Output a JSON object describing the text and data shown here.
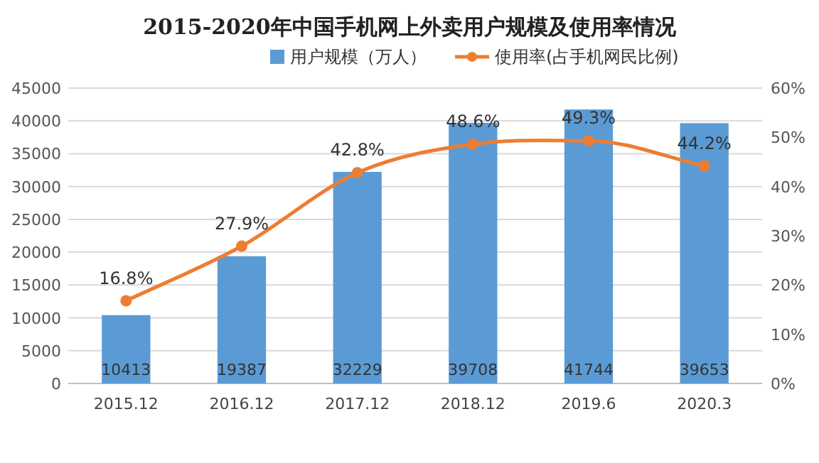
{
  "chart_data": {
    "type": "bar",
    "title": "2015-2020年中国手机网上外卖用户规模及使用率情况",
    "categories": [
      "2015.12",
      "2016.12",
      "2017.12",
      "2018.12",
      "2019.6",
      "2020.3"
    ],
    "series": [
      {
        "name": "用户规模（万人）",
        "color": "#5b9bd5",
        "values": [
          10413,
          19387,
          32229,
          39708,
          41744,
          39653
        ]
      },
      {
        "name": "使用率(占手机网民比例)",
        "type": "line",
        "axis": "y2",
        "color": "#ed7d31",
        "marker": "circle",
        "values": [
          16.8,
          27.9,
          42.8,
          48.6,
          49.3,
          44.2
        ],
        "value_labels": [
          "16.8%",
          "27.9%",
          "42.8%",
          "48.6%",
          "49.3%",
          "44.2%"
        ]
      }
    ],
    "ylim": [
      0,
      45000
    ],
    "yticks": [
      0,
      5000,
      10000,
      15000,
      20000,
      25000,
      30000,
      35000,
      40000,
      45000
    ],
    "y2lim": [
      0,
      60
    ],
    "y2ticks": [
      {
        "value": 0,
        "label": "0%"
      },
      {
        "value": 10,
        "label": "10%"
      },
      {
        "value": 20,
        "label": "20%"
      },
      {
        "value": 30,
        "label": "30%"
      },
      {
        "value": 40,
        "label": "40%"
      },
      {
        "value": 50,
        "label": "50%"
      },
      {
        "value": 60,
        "label": "60%"
      }
    ],
    "grid": "y",
    "legend": "top",
    "data_labels": true
  }
}
